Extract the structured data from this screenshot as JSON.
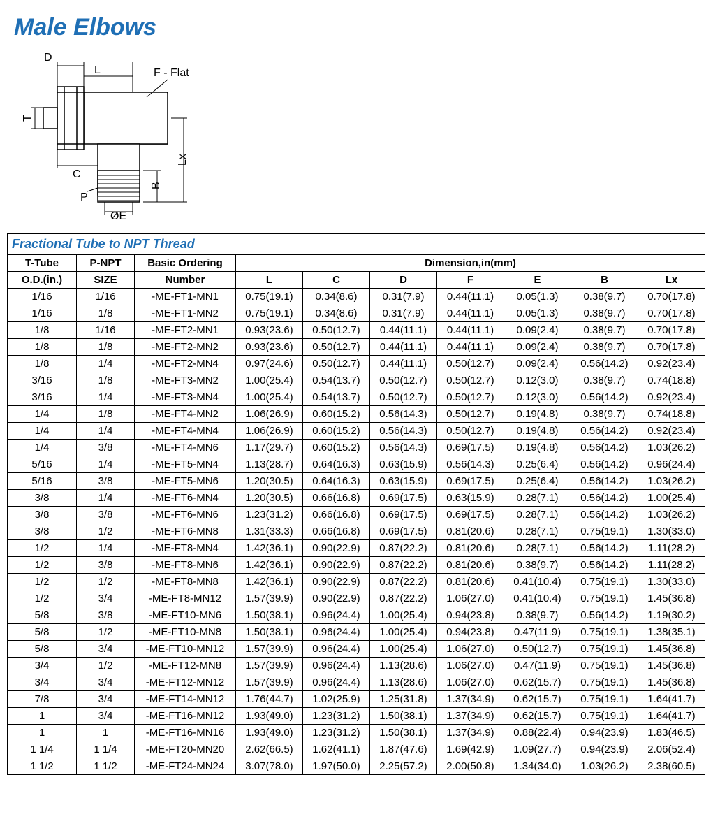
{
  "title": "Male Elbows",
  "section_title": "Fractional Tube to NPT Thread",
  "diagram": {
    "labels": {
      "D": "D",
      "L": "L",
      "F": "F - Flat",
      "T": "T",
      "C": "C",
      "P": "P",
      "E": "ØE",
      "B": "B",
      "Lx": "Lx"
    }
  },
  "table": {
    "head": {
      "tube": [
        "T-Tube",
        "O.D.(in.)"
      ],
      "pnpt": [
        "P-NPT",
        "SIZE"
      ],
      "order": [
        "Basic Ordering",
        "Number"
      ],
      "dim_title": "Dimension,in(mm)",
      "dims": [
        "L",
        "C",
        "D",
        "F",
        "E",
        "B",
        "Lx"
      ]
    },
    "rows": [
      [
        "1/16",
        "1/16",
        "-ME-FT1-MN1",
        "0.75(19.1)",
        "0.34(8.6)",
        "0.31(7.9)",
        "0.44(11.1)",
        "0.05(1.3)",
        "0.38(9.7)",
        "0.70(17.8)"
      ],
      [
        "1/16",
        "1/8",
        "-ME-FT1-MN2",
        "0.75(19.1)",
        "0.34(8.6)",
        "0.31(7.9)",
        "0.44(11.1)",
        "0.05(1.3)",
        "0.38(9.7)",
        "0.70(17.8)"
      ],
      [
        "1/8",
        "1/16",
        "-ME-FT2-MN1",
        "0.93(23.6)",
        "0.50(12.7)",
        "0.44(11.1)",
        "0.44(11.1)",
        "0.09(2.4)",
        "0.38(9.7)",
        "0.70(17.8)"
      ],
      [
        "1/8",
        "1/8",
        "-ME-FT2-MN2",
        "0.93(23.6)",
        "0.50(12.7)",
        "0.44(11.1)",
        "0.44(11.1)",
        "0.09(2.4)",
        "0.38(9.7)",
        "0.70(17.8)"
      ],
      [
        "1/8",
        "1/4",
        "-ME-FT2-MN4",
        "0.97(24.6)",
        "0.50(12.7)",
        "0.44(11.1)",
        "0.50(12.7)",
        "0.09(2.4)",
        "0.56(14.2)",
        "0.92(23.4)"
      ],
      [
        "3/16",
        "1/8",
        "-ME-FT3-MN2",
        "1.00(25.4)",
        "0.54(13.7)",
        "0.50(12.7)",
        "0.50(12.7)",
        "0.12(3.0)",
        "0.38(9.7)",
        "0.74(18.8)"
      ],
      [
        "3/16",
        "1/4",
        "-ME-FT3-MN4",
        "1.00(25.4)",
        "0.54(13.7)",
        "0.50(12.7)",
        "0.50(12.7)",
        "0.12(3.0)",
        "0.56(14.2)",
        "0.92(23.4)"
      ],
      [
        "1/4",
        "1/8",
        "-ME-FT4-MN2",
        "1.06(26.9)",
        "0.60(15.2)",
        "0.56(14.3)",
        "0.50(12.7)",
        "0.19(4.8)",
        "0.38(9.7)",
        "0.74(18.8)"
      ],
      [
        "1/4",
        "1/4",
        "-ME-FT4-MN4",
        "1.06(26.9)",
        "0.60(15.2)",
        "0.56(14.3)",
        "0.50(12.7)",
        "0.19(4.8)",
        "0.56(14.2)",
        "0.92(23.4)"
      ],
      [
        "1/4",
        "3/8",
        "-ME-FT4-MN6",
        "1.17(29.7)",
        "0.60(15.2)",
        "0.56(14.3)",
        "0.69(17.5)",
        "0.19(4.8)",
        "0.56(14.2)",
        "1.03(26.2)"
      ],
      [
        "5/16",
        "1/4",
        "-ME-FT5-MN4",
        "1.13(28.7)",
        "0.64(16.3)",
        "0.63(15.9)",
        "0.56(14.3)",
        "0.25(6.4)",
        "0.56(14.2)",
        "0.96(24.4)"
      ],
      [
        "5/16",
        "3/8",
        "-ME-FT5-MN6",
        "1.20(30.5)",
        "0.64(16.3)",
        "0.63(15.9)",
        "0.69(17.5)",
        "0.25(6.4)",
        "0.56(14.2)",
        "1.03(26.2)"
      ],
      [
        "3/8",
        "1/4",
        "-ME-FT6-MN4",
        "1.20(30.5)",
        "0.66(16.8)",
        "0.69(17.5)",
        "0.63(15.9)",
        "0.28(7.1)",
        "0.56(14.2)",
        "1.00(25.4)"
      ],
      [
        "3/8",
        "3/8",
        "-ME-FT6-MN6",
        "1.23(31.2)",
        "0.66(16.8)",
        "0.69(17.5)",
        "0.69(17.5)",
        "0.28(7.1)",
        "0.56(14.2)",
        "1.03(26.2)"
      ],
      [
        "3/8",
        "1/2",
        "-ME-FT6-MN8",
        "1.31(33.3)",
        "0.66(16.8)",
        "0.69(17.5)",
        "0.81(20.6)",
        "0.28(7.1)",
        "0.75(19.1)",
        "1.30(33.0)"
      ],
      [
        "1/2",
        "1/4",
        "-ME-FT8-MN4",
        "1.42(36.1)",
        "0.90(22.9)",
        "0.87(22.2)",
        "0.81(20.6)",
        "0.28(7.1)",
        "0.56(14.2)",
        "1.11(28.2)"
      ],
      [
        "1/2",
        "3/8",
        "-ME-FT8-MN6",
        "1.42(36.1)",
        "0.90(22.9)",
        "0.87(22.2)",
        "0.81(20.6)",
        "0.38(9.7)",
        "0.56(14.2)",
        "1.11(28.2)"
      ],
      [
        "1/2",
        "1/2",
        "-ME-FT8-MN8",
        "1.42(36.1)",
        "0.90(22.9)",
        "0.87(22.2)",
        "0.81(20.6)",
        "0.41(10.4)",
        "0.75(19.1)",
        "1.30(33.0)"
      ],
      [
        "1/2",
        "3/4",
        "-ME-FT8-MN12",
        "1.57(39.9)",
        "0.90(22.9)",
        "0.87(22.2)",
        "1.06(27.0)",
        "0.41(10.4)",
        "0.75(19.1)",
        "1.45(36.8)"
      ],
      [
        "5/8",
        "3/8",
        "-ME-FT10-MN6",
        "1.50(38.1)",
        "0.96(24.4)",
        "1.00(25.4)",
        "0.94(23.8)",
        "0.38(9.7)",
        "0.56(14.2)",
        "1.19(30.2)"
      ],
      [
        "5/8",
        "1/2",
        "-ME-FT10-MN8",
        "1.50(38.1)",
        "0.96(24.4)",
        "1.00(25.4)",
        "0.94(23.8)",
        "0.47(11.9)",
        "0.75(19.1)",
        "1.38(35.1)"
      ],
      [
        "5/8",
        "3/4",
        "-ME-FT10-MN12",
        "1.57(39.9)",
        "0.96(24.4)",
        "1.00(25.4)",
        "1.06(27.0)",
        "0.50(12.7)",
        "0.75(19.1)",
        "1.45(36.8)"
      ],
      [
        "3/4",
        "1/2",
        "-ME-FT12-MN8",
        "1.57(39.9)",
        "0.96(24.4)",
        "1.13(28.6)",
        "1.06(27.0)",
        "0.47(11.9)",
        "0.75(19.1)",
        "1.45(36.8)"
      ],
      [
        "3/4",
        "3/4",
        "-ME-FT12-MN12",
        "1.57(39.9)",
        "0.96(24.4)",
        "1.13(28.6)",
        "1.06(27.0)",
        "0.62(15.7)",
        "0.75(19.1)",
        "1.45(36.8)"
      ],
      [
        "7/8",
        "3/4",
        "-ME-FT14-MN12",
        "1.76(44.7)",
        "1.02(25.9)",
        "1.25(31.8)",
        "1.37(34.9)",
        "0.62(15.7)",
        "0.75(19.1)",
        "1.64(41.7)"
      ],
      [
        "1",
        "3/4",
        "-ME-FT16-MN12",
        "1.93(49.0)",
        "1.23(31.2)",
        "1.50(38.1)",
        "1.37(34.9)",
        "0.62(15.7)",
        "0.75(19.1)",
        "1.64(41.7)"
      ],
      [
        "1",
        "1",
        "-ME-FT16-MN16",
        "1.93(49.0)",
        "1.23(31.2)",
        "1.50(38.1)",
        "1.37(34.9)",
        "0.88(22.4)",
        "0.94(23.9)",
        "1.83(46.5)"
      ],
      [
        "1 1/4",
        "1 1/4",
        "-ME-FT20-MN20",
        "2.62(66.5)",
        "1.62(41.1)",
        "1.87(47.6)",
        "1.69(42.9)",
        "1.09(27.7)",
        "0.94(23.9)",
        "2.06(52.4)"
      ],
      [
        "1 1/2",
        "1 1/2",
        "-ME-FT24-MN24",
        "3.07(78.0)",
        "1.97(50.0)",
        "2.25(57.2)",
        "2.00(50.8)",
        "1.34(34.0)",
        "1.03(26.2)",
        "2.38(60.5)"
      ]
    ]
  }
}
